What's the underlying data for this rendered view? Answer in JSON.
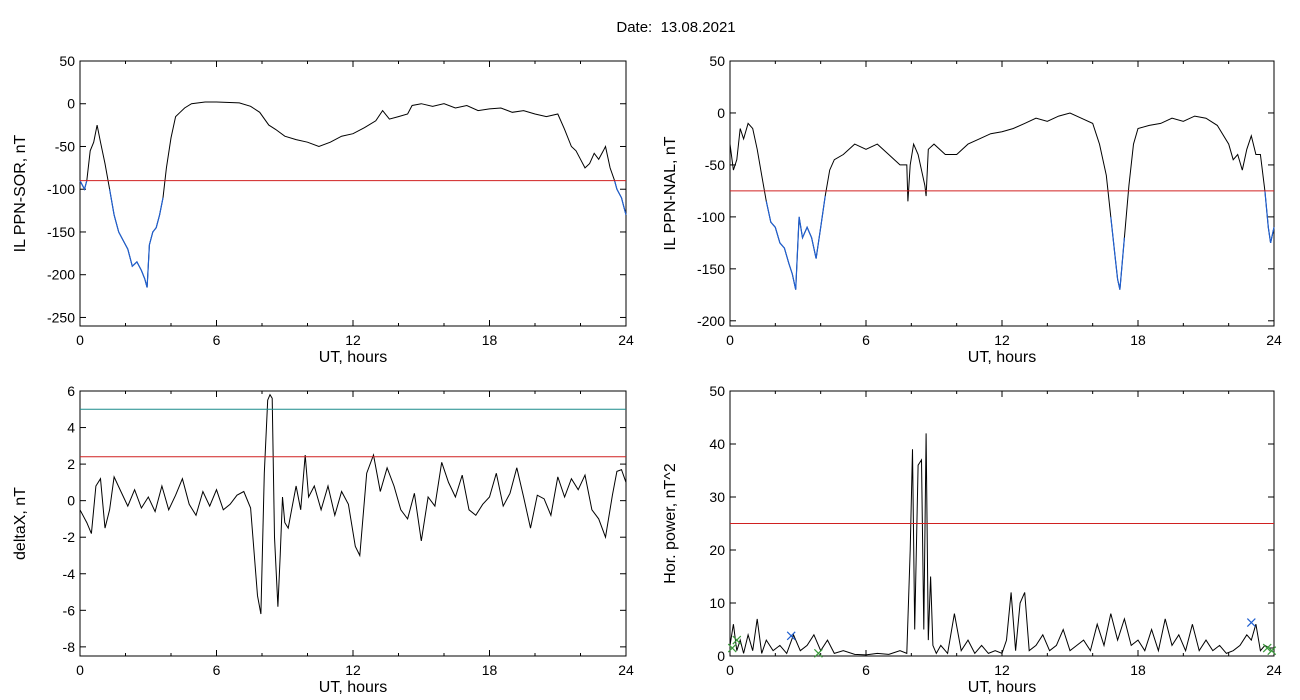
{
  "figure": {
    "date_label": "Date:",
    "date_value": "13.08.2021"
  },
  "colors": {
    "background": "#ffffff",
    "trace": "#000000",
    "highlight_trace": "#1f5fd0",
    "threshold_red": "#d02020",
    "threshold_teal": "#1a8c8c",
    "marker_blue": "#1f5fd0",
    "marker_green": "#3a9a3a"
  },
  "chart_data": [
    {
      "type": "line",
      "xlabel": "UT, hours",
      "ylabel": "IL PPN-SOR, nT",
      "xlim": [
        0,
        24
      ],
      "ylim": [
        -260,
        50
      ],
      "xticks": [
        0,
        6,
        12,
        18,
        24
      ],
      "yticks": [
        50,
        0,
        -50,
        -100,
        -150,
        -200,
        -250
      ],
      "grid": false,
      "thresholds": [
        {
          "value": -90,
          "color": "#d02020"
        }
      ],
      "highlight_below": -90,
      "series": [
        {
          "x": [
            0,
            0.2,
            0.3,
            0.45,
            0.6,
            0.75,
            0.9,
            1.1,
            1.3,
            1.5,
            1.7,
            1.9,
            2.1,
            2.3,
            2.5,
            2.7,
            2.85,
            2.95,
            3.05,
            3.2,
            3.35,
            3.5,
            3.65,
            3.8,
            4.0,
            4.2,
            4.4,
            4.6,
            4.9,
            5.5,
            6,
            7,
            7.5,
            7.9,
            8.3,
            8.6,
            9,
            9.5,
            10,
            10.5,
            11,
            11.5,
            12,
            12.5,
            13,
            13.3,
            13.6,
            14,
            14.4,
            14.6,
            15,
            15.5,
            16,
            16.5,
            17,
            17.5,
            18,
            18.5,
            19,
            19.5,
            20,
            20.5,
            21,
            21.3,
            21.6,
            21.8,
            22,
            22.2,
            22.4,
            22.6,
            22.8,
            23,
            23.1,
            23.3,
            23.5,
            23.6,
            23.7,
            23.8,
            23.9,
            24
          ],
          "y": [
            -90,
            -100,
            -90,
            -55,
            -45,
            -25,
            -45,
            -70,
            -100,
            -130,
            -150,
            -160,
            -170,
            -190,
            -185,
            -195,
            -205,
            -215,
            -165,
            -150,
            -145,
            -130,
            -110,
            -75,
            -40,
            -15,
            -10,
            -5,
            0,
            2,
            2,
            1,
            -3,
            -10,
            -25,
            -30,
            -38,
            -42,
            -45,
            -50,
            -45,
            -38,
            -35,
            -28,
            -20,
            -8,
            -18,
            -15,
            -12,
            -2,
            0,
            -3,
            0,
            -5,
            -2,
            -8,
            -6,
            -5,
            -10,
            -8,
            -12,
            -15,
            -12,
            -30,
            -50,
            -55,
            -65,
            -75,
            -70,
            -58,
            -65,
            -55,
            -50,
            -75,
            -90,
            -100,
            -105,
            -110,
            -120,
            -130
          ]
        }
      ]
    },
    {
      "type": "line",
      "xlabel": "UT, hours",
      "ylabel": "IL PPN-NAL, nT",
      "xlim": [
        0,
        24
      ],
      "ylim": [
        -205,
        50
      ],
      "xticks": [
        0,
        6,
        12,
        18,
        24
      ],
      "yticks": [
        50,
        0,
        -50,
        -100,
        -150,
        -200
      ],
      "grid": false,
      "thresholds": [
        {
          "value": -75,
          "color": "#d02020"
        }
      ],
      "highlight_below": -75,
      "series": [
        {
          "x": [
            0,
            0.15,
            0.3,
            0.45,
            0.6,
            0.8,
            1.0,
            1.2,
            1.4,
            1.6,
            1.8,
            2.0,
            2.2,
            2.4,
            2.6,
            2.75,
            2.9,
            3.05,
            3.2,
            3.4,
            3.6,
            3.8,
            4.0,
            4.2,
            4.4,
            4.6,
            5,
            5.5,
            6,
            6.5,
            7,
            7.5,
            7.8,
            7.85,
            7.95,
            8.1,
            8.3,
            8.6,
            8.65,
            8.75,
            9,
            9.5,
            10,
            10.5,
            11,
            11.5,
            12,
            12.5,
            13,
            13.5,
            14,
            14.5,
            15,
            15.5,
            16,
            16.3,
            16.6,
            16.8,
            17.0,
            17.1,
            17.2,
            17.4,
            17.6,
            17.8,
            18,
            18.5,
            19,
            19.5,
            20,
            20.5,
            21,
            21.5,
            22,
            22.2,
            22.4,
            22.6,
            22.8,
            23,
            23.2,
            23.4,
            23.6,
            23.75,
            23.85,
            24
          ],
          "y": [
            -30,
            -55,
            -45,
            -15,
            -25,
            -10,
            -15,
            -35,
            -60,
            -85,
            -105,
            -110,
            -125,
            -130,
            -145,
            -155,
            -170,
            -100,
            -120,
            -110,
            -120,
            -140,
            -110,
            -80,
            -55,
            -45,
            -40,
            -30,
            -35,
            -30,
            -40,
            -50,
            -50,
            -85,
            -50,
            -30,
            -40,
            -70,
            -80,
            -35,
            -30,
            -40,
            -40,
            -30,
            -25,
            -20,
            -18,
            -15,
            -10,
            -5,
            -8,
            -3,
            0,
            -5,
            -10,
            -30,
            -60,
            -100,
            -140,
            -160,
            -170,
            -120,
            -70,
            -30,
            -15,
            -12,
            -10,
            -5,
            -8,
            -3,
            -5,
            -12,
            -30,
            -45,
            -40,
            -55,
            -35,
            -22,
            -40,
            -40,
            -75,
            -110,
            -125,
            -110
          ]
        }
      ]
    },
    {
      "type": "line",
      "xlabel": "UT, hours",
      "ylabel": "deltaX, nT",
      "xlim": [
        0,
        24
      ],
      "ylim": [
        -8.5,
        6
      ],
      "xticks": [
        0,
        6,
        12,
        18,
        24
      ],
      "yticks": [
        6,
        4,
        2,
        0,
        -2,
        -4,
        -6,
        -8
      ],
      "grid": false,
      "thresholds": [
        {
          "value": 5.0,
          "color": "#1a8c8c"
        },
        {
          "value": 2.4,
          "color": "#d02020"
        }
      ],
      "series": [
        {
          "x": [
            0,
            0.3,
            0.5,
            0.7,
            0.9,
            1.1,
            1.3,
            1.5,
            1.8,
            2.1,
            2.4,
            2.7,
            3.0,
            3.3,
            3.6,
            3.9,
            4.2,
            4.5,
            4.8,
            5.1,
            5.4,
            5.7,
            6.0,
            6.3,
            6.6,
            6.9,
            7.2,
            7.5,
            7.8,
            7.95,
            8.1,
            8.25,
            8.35,
            8.45,
            8.55,
            8.7,
            8.8,
            8.9,
            9.0,
            9.15,
            9.3,
            9.5,
            9.7,
            9.9,
            10.05,
            10.3,
            10.6,
            10.9,
            11.2,
            11.5,
            11.8,
            12.1,
            12.3,
            12.6,
            12.9,
            13.2,
            13.5,
            13.8,
            14.1,
            14.4,
            14.7,
            15.0,
            15.3,
            15.6,
            15.9,
            16.2,
            16.5,
            16.8,
            17.1,
            17.4,
            17.7,
            18.0,
            18.3,
            18.6,
            18.9,
            19.2,
            19.5,
            19.8,
            20.1,
            20.4,
            20.7,
            21.0,
            21.3,
            21.6,
            21.9,
            22.2,
            22.5,
            22.8,
            23.1,
            23.4,
            23.6,
            23.8,
            24
          ],
          "y": [
            -0.5,
            -1.2,
            -1.8,
            0.8,
            1.2,
            -1.5,
            -0.5,
            1.3,
            0.5,
            -0.3,
            0.6,
            -0.4,
            0.2,
            -0.6,
            0.8,
            -0.5,
            0.3,
            1.2,
            -0.2,
            -0.8,
            0.5,
            -0.3,
            0.6,
            -0.5,
            -0.2,
            0.3,
            0.5,
            -0.4,
            -5.2,
            -6.2,
            1.5,
            5.5,
            5.8,
            5.6,
            -2.0,
            -5.8,
            -3.0,
            0.2,
            -1.2,
            -1.5,
            -0.5,
            0.8,
            -0.5,
            2.5,
            0.2,
            0.8,
            -0.5,
            0.8,
            -0.8,
            0.5,
            -0.2,
            -2.5,
            -3.0,
            1.5,
            2.5,
            0.5,
            1.8,
            0.8,
            -0.5,
            -1.0,
            0.4,
            -2.2,
            0.2,
            -0.3,
            2.1,
            1.0,
            0.2,
            1.4,
            -0.5,
            -0.8,
            -0.2,
            0.2,
            1.5,
            -0.3,
            0.4,
            1.8,
            0.2,
            -1.5,
            0.3,
            0.1,
            -0.8,
            1.3,
            0.2,
            1.2,
            0.6,
            1.4,
            -0.5,
            -1.0,
            -2.0,
            0.3,
            1.6,
            1.7,
            1.0
          ]
        }
      ]
    },
    {
      "type": "line",
      "xlabel": "UT, hours",
      "ylabel": "Hor. power, nT^2",
      "xlim": [
        0,
        24
      ],
      "ylim": [
        0,
        50
      ],
      "xticks": [
        0,
        6,
        12,
        18,
        24
      ],
      "yticks": [
        50,
        40,
        30,
        20,
        10,
        0
      ],
      "grid": false,
      "thresholds": [
        {
          "value": 25,
          "color": "#d02020"
        }
      ],
      "series": [
        {
          "x": [
            0,
            0.15,
            0.3,
            0.45,
            0.6,
            0.8,
            1.0,
            1.2,
            1.4,
            1.6,
            1.9,
            2.2,
            2.5,
            2.8,
            3.1,
            3.4,
            3.7,
            4.0,
            4.3,
            4.6,
            5.0,
            5.5,
            6.0,
            6.5,
            7.0,
            7.5,
            7.8,
            7.95,
            8.05,
            8.15,
            8.3,
            8.45,
            8.55,
            8.65,
            8.75,
            8.85,
            8.95,
            9.1,
            9.3,
            9.6,
            9.9,
            10.2,
            10.5,
            10.8,
            11.1,
            11.4,
            11.7,
            12.0,
            12.2,
            12.4,
            12.6,
            12.8,
            13.0,
            13.2,
            13.5,
            13.8,
            14.1,
            14.4,
            14.7,
            15.0,
            15.3,
            15.6,
            15.9,
            16.2,
            16.5,
            16.8,
            17.1,
            17.4,
            17.7,
            18.0,
            18.3,
            18.6,
            18.9,
            19.2,
            19.5,
            19.8,
            20.1,
            20.4,
            20.7,
            21.0,
            21.3,
            21.6,
            21.9,
            22.2,
            22.5,
            22.8,
            23.0,
            23.2,
            23.4,
            23.6,
            23.8,
            24
          ],
          "y": [
            2,
            6,
            1,
            3,
            0.5,
            4,
            1,
            7,
            0.5,
            3,
            1,
            2,
            0.5,
            4,
            1,
            2,
            4,
            1,
            3,
            0.5,
            1,
            0.3,
            0.2,
            0.5,
            0.3,
            1,
            0.5,
            20,
            39,
            5,
            36,
            37,
            5,
            42,
            3,
            15,
            2,
            0.5,
            2,
            0.5,
            8,
            1,
            3,
            0.5,
            2,
            0.5,
            1,
            0.5,
            3,
            12,
            1,
            10,
            12,
            1,
            2,
            4,
            1,
            2,
            5,
            1,
            2,
            3,
            1,
            6,
            2,
            8,
            3,
            7,
            2,
            3,
            1,
            5,
            1,
            7,
            2,
            4,
            1,
            6,
            1,
            3,
            1,
            2,
            0.5,
            1,
            2,
            4,
            3,
            6,
            1,
            2,
            1.5,
            1.5
          ]
        }
      ],
      "markers": [
        {
          "x": 0.1,
          "y": 1.5,
          "color": "#3a9a3a"
        },
        {
          "x": 0.3,
          "y": 3.0,
          "color": "#3a9a3a"
        },
        {
          "x": 2.7,
          "y": 3.8,
          "color": "#1f5fd0"
        },
        {
          "x": 3.9,
          "y": 0.5,
          "color": "#3a9a3a"
        },
        {
          "x": 23.0,
          "y": 6.3,
          "color": "#1f5fd0"
        },
        {
          "x": 23.7,
          "y": 1.5,
          "color": "#3a9a3a"
        },
        {
          "x": 23.9,
          "y": 1.0,
          "color": "#3a9a3a"
        }
      ]
    }
  ]
}
